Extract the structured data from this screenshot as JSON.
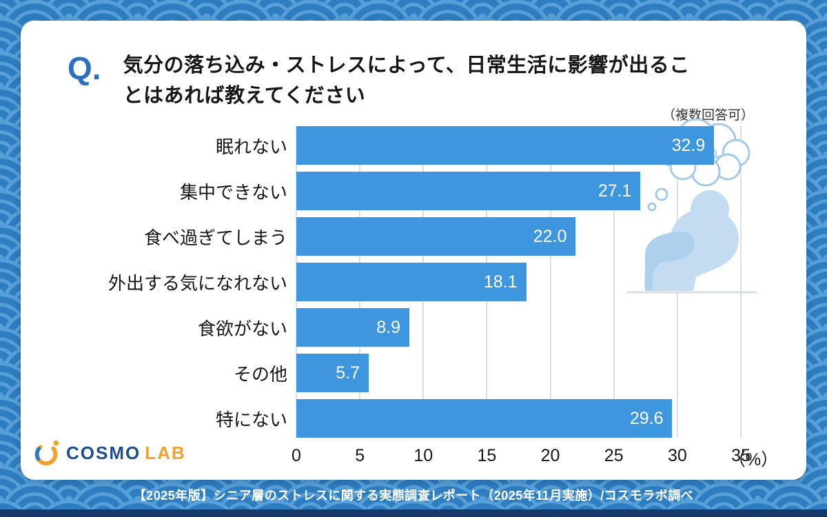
{
  "header": {
    "q_mark": "Q.",
    "title_line1": "気分の落ち込み・ストレスによって、日常生活に影響が出るこ",
    "title_line2": "とはあれば教えてください",
    "note": "（複数回答可）"
  },
  "chart_data": {
    "type": "bar",
    "orientation": "horizontal",
    "title": "気分の落ち込み・ストレスによって、日常生活に影響が出ることはあれば教えてください",
    "categories": [
      "眠れない",
      "集中できない",
      "食べ過ぎてしまう",
      "外出する気になれない",
      "食欲がない",
      "その他",
      "特にない"
    ],
    "values": [
      32.9,
      27.1,
      22.0,
      18.1,
      8.9,
      5.7,
      29.6
    ],
    "value_labels": [
      "32.9",
      "27.1",
      "22.0",
      "18.1",
      "8.9",
      "5.7",
      "29.6"
    ],
    "xlim": [
      0,
      35
    ],
    "x_ticks": [
      0,
      5,
      10,
      15,
      20,
      25,
      30,
      35
    ],
    "x_unit": "（%）",
    "grid": true,
    "legend": false,
    "bar_color": "#3E97DE"
  },
  "logo": {
    "cosmo": "COSMO",
    "lab": "LAB"
  },
  "footer": {
    "caption": "【2025年版】シニア層のストレスに関する実態調査レポート（2025年11月実施）/コスモラボ調べ"
  },
  "colors": {
    "background_blue": "#2E7DC1",
    "wave_line_blue": "#579FD8",
    "bar_blue": "#3E97DE",
    "q_accent_blue": "#2D6FC0",
    "logo_navy": "#1D4E8F",
    "logo_orange": "#F5A02C",
    "footer_strip_navy": "#17386B",
    "illustration_light_blue": "#C3DCF2"
  }
}
